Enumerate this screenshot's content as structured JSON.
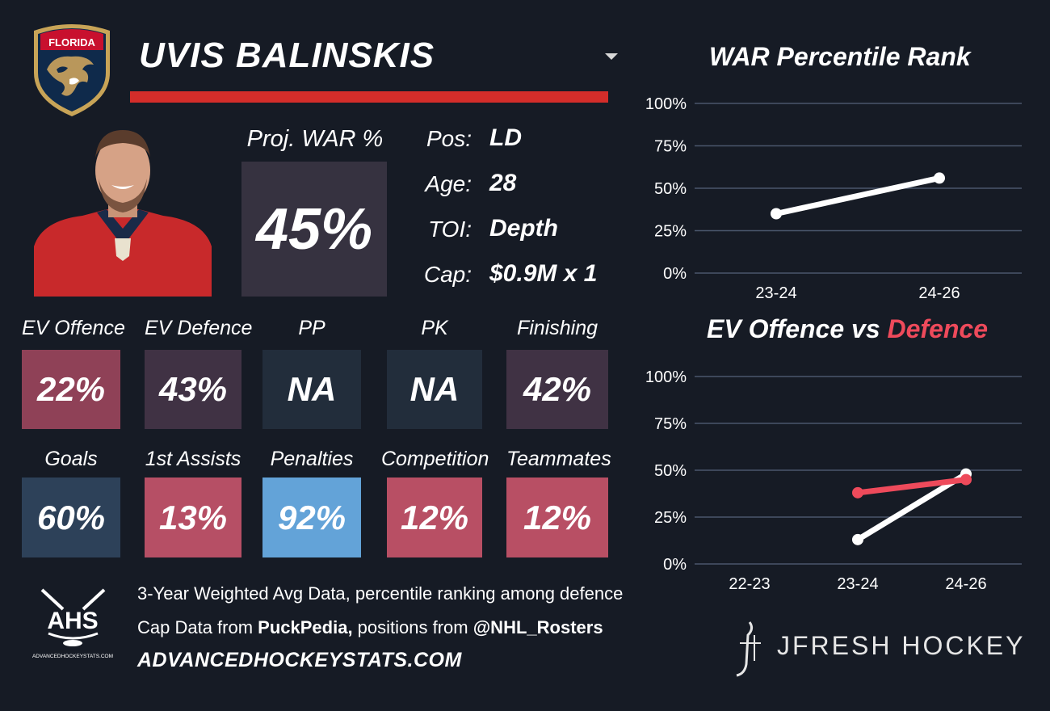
{
  "player": {
    "name": "UVIS BALINSKIS",
    "team_logo_text": "FLORIDA",
    "proj_war_label": "Proj. WAR %",
    "proj_war_value": "45%",
    "info": [
      {
        "label": "Pos:",
        "value": "LD"
      },
      {
        "label": "Age:",
        "value": "28"
      },
      {
        "label": "TOI:",
        "value": "Depth"
      },
      {
        "label": "Cap:",
        "value": "$0.9M x 1"
      }
    ]
  },
  "stats": {
    "row1": [
      {
        "label": "EV Offence",
        "value": "22%",
        "color": "#8f4157"
      },
      {
        "label": "EV Defence",
        "value": "43%",
        "color": "#403244"
      },
      {
        "label": "PP",
        "value": "NA",
        "color": "#222d3b"
      },
      {
        "label": "PK",
        "value": "NA",
        "color": "#222d3b"
      },
      {
        "label": "Finishing",
        "value": "42%",
        "color": "#403244"
      }
    ],
    "row2": [
      {
        "label": "Goals",
        "value": "60%",
        "color": "#2d4159"
      },
      {
        "label": "1st Assists",
        "value": "13%",
        "color": "#b64f65"
      },
      {
        "label": "Penalties",
        "value": "92%",
        "color": "#63a3d8"
      },
      {
        "label": "Competition",
        "value": "12%",
        "color": "#b84f64"
      },
      {
        "label": "Teammates",
        "value": "12%",
        "color": "#b84f64"
      }
    ]
  },
  "footer": {
    "ahs_logo_text": "AHS",
    "ahs_logo_sub": "ADVANCEDHOCKEYSTATS.COM",
    "line1": "3-Year Weighted Avg Data, percentile ranking among defence",
    "line2_a": "Cap Data from ",
    "line2_b": "PuckPedia,",
    "line2_c": " positions from ",
    "line2_d": "@NHL_Rosters",
    "site": "ADVANCEDHOCKEYSTATS.COM",
    "brand": "JFRESH HOCKEY"
  },
  "charts": {
    "war_title": "WAR Percentile Rank",
    "ev_title_a": "EV Offence vs ",
    "ev_title_b": "Defence"
  },
  "chart_data": [
    {
      "type": "line",
      "title": "WAR Percentile Rank",
      "categories": [
        "23-24",
        "24-26"
      ],
      "ylim": [
        0,
        100
      ],
      "yticks": [
        "0%",
        "25%",
        "50%",
        "75%",
        "100%"
      ],
      "grid": true,
      "series": [
        {
          "values": [
            35,
            56
          ],
          "color": "#ffffff"
        }
      ]
    },
    {
      "type": "line",
      "title": "EV Offence vs Defence",
      "categories": [
        "22-23",
        "23-24",
        "24-26"
      ],
      "ylim": [
        0,
        100
      ],
      "yticks": [
        "0%",
        "25%",
        "50%",
        "75%",
        "100%"
      ],
      "grid": true,
      "series": [
        {
          "name": "EV Offence",
          "values": [
            null,
            13,
            48
          ],
          "color": "#ffffff"
        },
        {
          "name": "Defence",
          "values": [
            null,
            38,
            45
          ],
          "color": "#ee4a5b"
        }
      ]
    }
  ]
}
